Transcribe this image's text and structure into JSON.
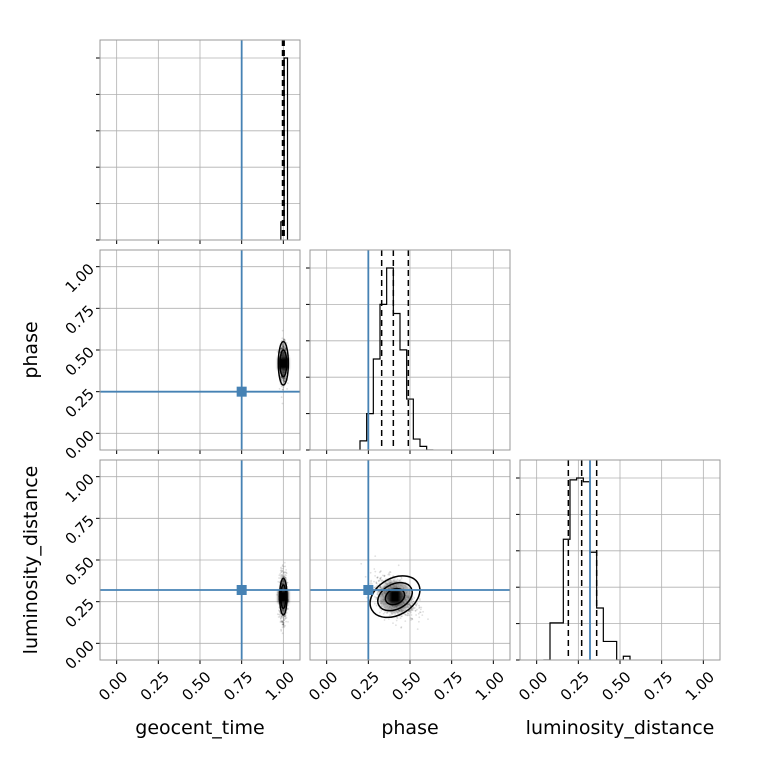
{
  "chart_data": {
    "type": "corner",
    "parameters": [
      "geocent_time",
      "phase",
      "luminosity_distance"
    ],
    "axis_range": [
      -0.1,
      1.1
    ],
    "tick_values": [
      0.0,
      0.25,
      0.5,
      0.75,
      1.0
    ],
    "tick_labels": [
      "0.00",
      "0.25",
      "0.50",
      "0.75",
      "1.00"
    ],
    "grid": true,
    "truth_color": "#4682b4",
    "truths": {
      "geocent_time": 0.75,
      "phase": 0.25,
      "luminosity_distance": 0.32
    },
    "quantiles": {
      "geocent_time": [
        0.995,
        1.0,
        1.005
      ],
      "phase": [
        0.33,
        0.4,
        0.49
      ],
      "luminosity_distance": [
        0.19,
        0.27,
        0.36
      ]
    },
    "marginals": {
      "geocent_time": {
        "edges": [
          0.985,
          1.005,
          1.025
        ],
        "density": [
          0.1,
          1.0
        ]
      },
      "phase": {
        "edges": [
          0.2,
          0.24,
          0.28,
          0.32,
          0.36,
          0.4,
          0.44,
          0.48,
          0.52,
          0.56,
          0.6,
          0.64
        ],
        "density": [
          0.05,
          0.2,
          0.5,
          0.8,
          1.0,
          0.75,
          0.55,
          0.28,
          0.06,
          0.02,
          0.0
        ]
      },
      "luminosity_distance": {
        "edges": [
          0.04,
          0.08,
          0.12,
          0.16,
          0.2,
          0.24,
          0.28,
          0.32,
          0.36,
          0.4,
          0.44,
          0.48,
          0.52,
          0.56
        ],
        "density": [
          0.0,
          0.2,
          0.2,
          0.65,
          0.97,
          0.98,
          0.96,
          0.58,
          0.28,
          0.1,
          0.1,
          0.0,
          0.02
        ]
      }
    },
    "joint": [
      {
        "x": "geocent_time",
        "y": "phase",
        "center": [
          1.0,
          0.42
        ],
        "spread": [
          0.01,
          0.06
        ],
        "rho": 0.0,
        "contours": [
          [
            0.02,
            0.08
          ],
          [
            0.03,
            0.13
          ]
        ]
      },
      {
        "x": "geocent_time",
        "y": "luminosity_distance",
        "center": [
          1.0,
          0.28
        ],
        "spread": [
          0.01,
          0.07
        ],
        "rho": 0.0,
        "contours": [
          [
            0.015,
            0.07
          ],
          [
            0.022,
            0.11
          ]
        ]
      },
      {
        "x": "phase",
        "y": "luminosity_distance",
        "center": [
          0.41,
          0.28
        ],
        "spread": [
          0.06,
          0.06
        ],
        "rho": -0.4,
        "contours": [
          [
            0.06,
            0.045,
            -25
          ],
          [
            0.11,
            0.075,
            -28
          ],
          [
            0.16,
            0.11,
            -30
          ]
        ]
      }
    ]
  }
}
